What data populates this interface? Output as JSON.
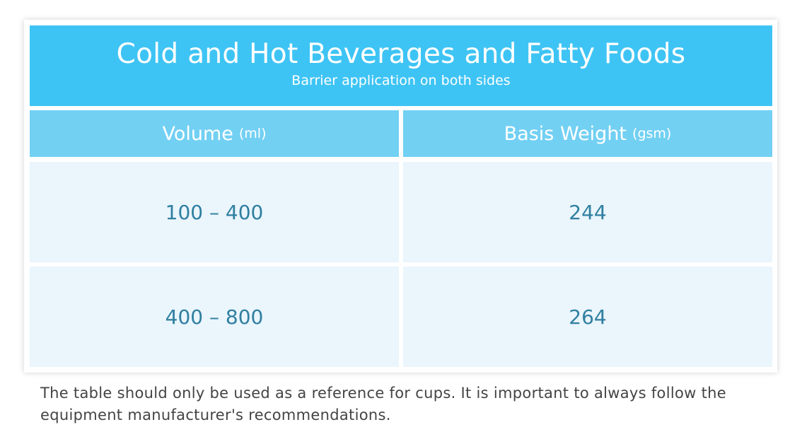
{
  "header": {
    "title": "Cold and Hot Beverages and Fatty Foods",
    "subtitle": "Barrier application on both sides"
  },
  "table": {
    "columns": [
      {
        "text": "Volume",
        "unit": "(ml)"
      },
      {
        "text": "Basis Weight",
        "unit": "(gsm)"
      }
    ],
    "rows": [
      [
        "100 – 400",
        "244"
      ],
      [
        "400 – 800",
        "264"
      ]
    ]
  },
  "footnote": "The table should only be used as a reference for cups. It is important to always follow the equipment manufacturer's recommendations."
}
